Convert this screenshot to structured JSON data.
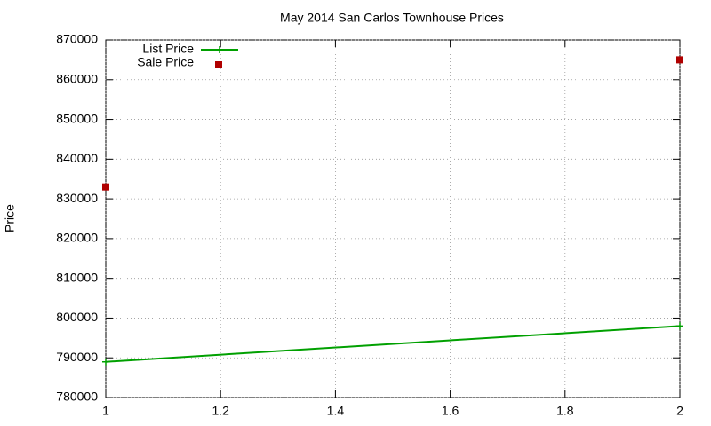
{
  "chart_data": {
    "type": "line",
    "title": "May 2014 San Carlos Townhouse Prices",
    "y_label": "Price",
    "x": [
      1,
      2
    ],
    "series": [
      {
        "name": "List Price",
        "type": "line",
        "color": "#00a000",
        "values": [
          789000,
          798000
        ]
      },
      {
        "name": "Sale Price",
        "type": "scatter",
        "color": "#b00000",
        "values": [
          833000,
          865000
        ]
      }
    ],
    "xlim": [
      1,
      2
    ],
    "xticks": [
      1,
      1.2,
      1.4,
      1.6,
      1.8,
      2
    ],
    "ylim": [
      780000,
      870000
    ],
    "yticks": [
      780000,
      790000,
      800000,
      810000,
      820000,
      830000,
      840000,
      850000,
      860000,
      870000
    ],
    "grid": true,
    "legend": "top-left"
  }
}
